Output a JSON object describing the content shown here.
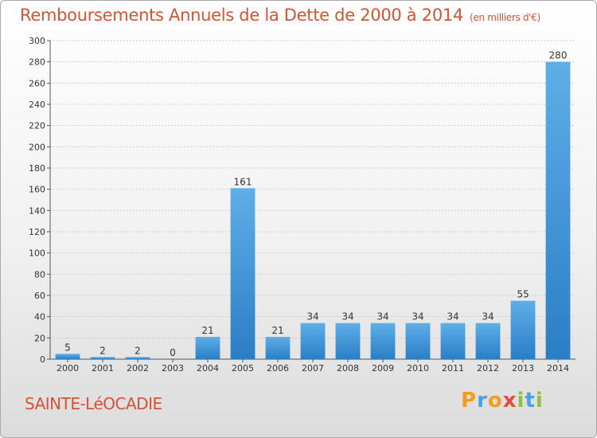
{
  "title": "Remboursements Annuels de la Dette de 2000 à 2014",
  "subtitle": "(en milliers d'€)",
  "commune": "SAINTE-LéOCADIE",
  "logo": {
    "letters": [
      "P",
      "r",
      "o",
      "x",
      "i",
      "t",
      "i"
    ],
    "colors": [
      "#f39c1f",
      "#4aa3df",
      "#f39c1f",
      "#e74c3c",
      "#8bc34a",
      "#4aa3df",
      "#8bc34a"
    ]
  },
  "colors": {
    "title": "#d35435",
    "bar_light": "#5eaee8",
    "bar_dark": "#2a7ec4",
    "grid": "#cccccc"
  },
  "chart_data": {
    "type": "bar",
    "categories": [
      "2000",
      "2001",
      "2002",
      "2003",
      "2004",
      "2005",
      "2006",
      "2007",
      "2008",
      "2009",
      "2010",
      "2011",
      "2012",
      "2013",
      "2014"
    ],
    "values": [
      5,
      2,
      2,
      0,
      21,
      161,
      21,
      34,
      34,
      34,
      34,
      34,
      34,
      55,
      280
    ],
    "ylim": [
      0,
      300
    ],
    "yticks": [
      0,
      20,
      40,
      60,
      80,
      100,
      120,
      140,
      160,
      180,
      200,
      220,
      240,
      260,
      280,
      300
    ],
    "grid": true
  }
}
